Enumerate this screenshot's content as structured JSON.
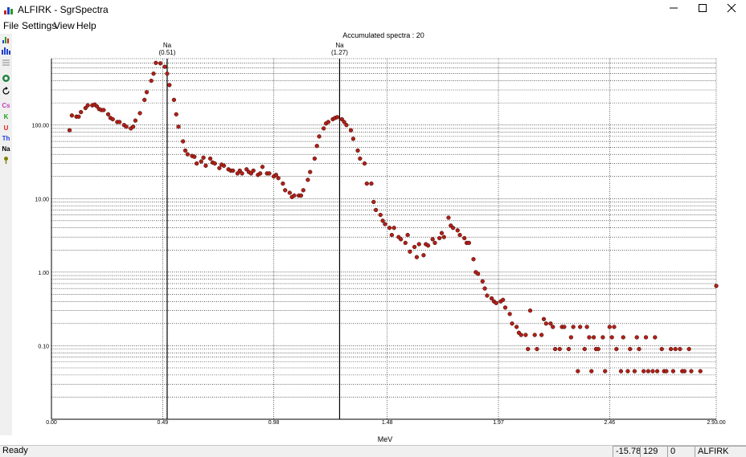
{
  "window": {
    "title": "ALFIRK - SgrSpectra"
  },
  "menu": [
    "File",
    "Settings",
    "View",
    "Help"
  ],
  "toolbar": {
    "buttons": [
      {
        "name": "bar-chart-icon",
        "label": ""
      },
      {
        "name": "multi-bar-chart-icon",
        "label": ""
      },
      {
        "name": "list-icon",
        "label": ""
      },
      {
        "name": "globe-icon",
        "label": ""
      },
      {
        "name": "refresh-icon",
        "label": ""
      },
      {
        "name": "cs-button",
        "label": "Cs",
        "color": "#c040c0"
      },
      {
        "name": "k-button",
        "label": "K",
        "color": "#20a020"
      },
      {
        "name": "u-button",
        "label": "U",
        "color": "#e02020"
      },
      {
        "name": "th-button",
        "label": "Th",
        "color": "#2040e0"
      },
      {
        "name": "na-button",
        "label": "Na",
        "color": "#000000"
      },
      {
        "name": "key-icon",
        "label": ""
      }
    ]
  },
  "chart_data": {
    "type": "scatter",
    "title": "Accumulated spectra : 20",
    "xlabel": "MeV",
    "ylabel": "",
    "y_scale": "log",
    "xlim": [
      0.0,
      2.93
    ],
    "ylim": [
      0.01,
      800
    ],
    "x_ticks": [
      "0.00",
      "0.49",
      "0.98",
      "1.48",
      "1.97",
      "2.46",
      "2.93.00"
    ],
    "y_ticks": [
      "100.00",
      "10.00",
      "1.00",
      "0.10"
    ],
    "marker_color": "#b02018",
    "grid": true,
    "markers": [
      {
        "name": "Na",
        "value": "(0.51)",
        "x": 0.51
      },
      {
        "name": "Na",
        "value": "(1.27)",
        "x": 1.27
      }
    ],
    "points": [
      [
        0.08,
        85
      ],
      [
        0.09,
        135
      ],
      [
        0.11,
        130
      ],
      [
        0.12,
        130
      ],
      [
        0.13,
        150
      ],
      [
        0.15,
        170
      ],
      [
        0.16,
        185
      ],
      [
        0.18,
        185
      ],
      [
        0.19,
        190
      ],
      [
        0.2,
        180
      ],
      [
        0.21,
        165
      ],
      [
        0.22,
        160
      ],
      [
        0.23,
        160
      ],
      [
        0.25,
        140
      ],
      [
        0.26,
        125
      ],
      [
        0.27,
        120
      ],
      [
        0.29,
        110
      ],
      [
        0.3,
        110
      ],
      [
        0.32,
        100
      ],
      [
        0.33,
        95
      ],
      [
        0.35,
        90
      ],
      [
        0.36,
        95
      ],
      [
        0.37,
        115
      ],
      [
        0.39,
        145
      ],
      [
        0.41,
        220
      ],
      [
        0.42,
        280
      ],
      [
        0.44,
        400
      ],
      [
        0.45,
        500
      ],
      [
        0.46,
        700
      ],
      [
        0.48,
        690
      ],
      [
        0.5,
        620
      ],
      [
        0.51,
        500
      ],
      [
        0.52,
        350
      ],
      [
        0.54,
        220
      ],
      [
        0.55,
        140
      ],
      [
        0.56,
        95
      ],
      [
        0.58,
        60
      ],
      [
        0.59,
        45
      ],
      [
        0.6,
        40
      ],
      [
        0.62,
        38
      ],
      [
        0.63,
        37
      ],
      [
        0.64,
        30
      ],
      [
        0.66,
        32
      ],
      [
        0.67,
        36
      ],
      [
        0.68,
        28
      ],
      [
        0.7,
        35
      ],
      [
        0.71,
        31
      ],
      [
        0.72,
        30
      ],
      [
        0.74,
        26
      ],
      [
        0.75,
        29
      ],
      [
        0.76,
        28
      ],
      [
        0.78,
        25
      ],
      [
        0.79,
        24
      ],
      [
        0.8,
        24
      ],
      [
        0.82,
        22
      ],
      [
        0.83,
        24
      ],
      [
        0.84,
        22
      ],
      [
        0.86,
        25
      ],
      [
        0.87,
        23
      ],
      [
        0.88,
        22
      ],
      [
        0.89,
        24
      ],
      [
        0.91,
        21
      ],
      [
        0.92,
        22
      ],
      [
        0.93,
        27
      ],
      [
        0.95,
        22
      ],
      [
        0.96,
        22
      ],
      [
        0.98,
        20
      ],
      [
        0.99,
        21
      ],
      [
        1.0,
        19
      ],
      [
        1.02,
        16
      ],
      [
        1.03,
        13
      ],
      [
        1.05,
        12
      ],
      [
        1.06,
        10.5
      ],
      [
        1.07,
        11
      ],
      [
        1.09,
        11
      ],
      [
        1.1,
        11
      ],
      [
        1.11,
        13
      ],
      [
        1.13,
        18
      ],
      [
        1.14,
        23
      ],
      [
        1.16,
        35
      ],
      [
        1.17,
        52
      ],
      [
        1.18,
        70
      ],
      [
        1.2,
        90
      ],
      [
        1.21,
        105
      ],
      [
        1.22,
        110
      ],
      [
        1.24,
        120
      ],
      [
        1.25,
        125
      ],
      [
        1.26,
        128
      ],
      [
        1.28,
        120
      ],
      [
        1.29,
        110
      ],
      [
        1.3,
        100
      ],
      [
        1.32,
        85
      ],
      [
        1.33,
        65
      ],
      [
        1.35,
        45
      ],
      [
        1.36,
        35
      ],
      [
        1.38,
        30
      ],
      [
        1.39,
        16
      ],
      [
        1.41,
        16
      ],
      [
        1.42,
        9
      ],
      [
        1.43,
        7
      ],
      [
        1.45,
        6
      ],
      [
        1.46,
        5
      ],
      [
        1.47,
        4.5
      ],
      [
        1.49,
        4
      ],
      [
        1.5,
        3.2
      ],
      [
        1.51,
        4
      ],
      [
        1.53,
        3
      ],
      [
        1.54,
        2.8
      ],
      [
        1.56,
        2.5
      ],
      [
        1.57,
        3.2
      ],
      [
        1.58,
        1.9
      ],
      [
        1.6,
        2.2
      ],
      [
        1.61,
        1.6
      ],
      [
        1.62,
        2.4
      ],
      [
        1.64,
        1.7
      ],
      [
        1.65,
        2.4
      ],
      [
        1.66,
        2.3
      ],
      [
        1.68,
        2.8
      ],
      [
        1.69,
        2.5
      ],
      [
        1.71,
        2.9
      ],
      [
        1.72,
        3.4
      ],
      [
        1.73,
        3
      ],
      [
        1.75,
        5.5
      ],
      [
        1.76,
        4.3
      ],
      [
        1.77,
        4
      ],
      [
        1.79,
        3.7
      ],
      [
        1.8,
        3.2
      ],
      [
        1.82,
        2.9
      ],
      [
        1.83,
        2.5
      ],
      [
        1.84,
        2.5
      ],
      [
        1.86,
        1.5
      ],
      [
        1.87,
        1
      ],
      [
        1.88,
        0.95
      ],
      [
        1.9,
        0.75
      ],
      [
        1.91,
        0.6
      ],
      [
        1.92,
        0.48
      ],
      [
        1.94,
        0.44
      ],
      [
        1.95,
        0.4
      ],
      [
        1.96,
        0.38
      ],
      [
        1.98,
        0.4
      ],
      [
        1.99,
        0.42
      ],
      [
        2.0,
        0.33
      ],
      [
        2.02,
        0.27
      ],
      [
        2.03,
        0.2
      ],
      [
        2.05,
        0.18
      ],
      [
        2.06,
        0.15
      ],
      [
        2.07,
        0.14
      ],
      [
        2.09,
        0.14
      ],
      [
        2.1,
        0.09
      ],
      [
        2.11,
        0.3
      ],
      [
        2.13,
        0.14
      ],
      [
        2.14,
        0.09
      ],
      [
        2.16,
        0.14
      ],
      [
        2.17,
        0.23
      ],
      [
        2.18,
        0.2
      ],
      [
        2.2,
        0.2
      ],
      [
        2.21,
        0.18
      ],
      [
        2.22,
        0.09
      ],
      [
        2.24,
        0.09
      ],
      [
        2.25,
        0.18
      ],
      [
        2.26,
        0.18
      ],
      [
        2.28,
        0.09
      ],
      [
        2.29,
        0.13
      ],
      [
        2.3,
        0.18
      ],
      [
        2.32,
        0.045
      ],
      [
        2.33,
        0.18
      ],
      [
        2.35,
        0.09
      ],
      [
        2.36,
        0.18
      ],
      [
        2.37,
        0.13
      ],
      [
        2.38,
        0.045
      ],
      [
        2.39,
        0.13
      ],
      [
        2.4,
        0.09
      ],
      [
        2.41,
        0.09
      ],
      [
        2.43,
        0.13
      ],
      [
        2.44,
        0.045
      ],
      [
        2.46,
        0.18
      ],
      [
        2.47,
        0.13
      ],
      [
        2.48,
        0.18
      ],
      [
        2.49,
        0.09
      ],
      [
        2.51,
        0.045
      ],
      [
        2.52,
        0.13
      ],
      [
        2.54,
        0.045
      ],
      [
        2.55,
        0.09
      ],
      [
        2.57,
        0.045
      ],
      [
        2.58,
        0.13
      ],
      [
        2.59,
        0.09
      ],
      [
        2.61,
        0.045
      ],
      [
        2.62,
        0.13
      ],
      [
        2.63,
        0.045
      ],
      [
        2.65,
        0.045
      ],
      [
        2.66,
        0.13
      ],
      [
        2.67,
        0.045
      ],
      [
        2.69,
        0.09
      ],
      [
        2.7,
        0.045
      ],
      [
        2.71,
        0.045
      ],
      [
        2.73,
        0.09
      ],
      [
        2.74,
        0.045
      ],
      [
        2.75,
        0.09
      ],
      [
        2.77,
        0.09
      ],
      [
        2.78,
        0.045
      ],
      [
        2.79,
        0.045
      ],
      [
        2.81,
        0.09
      ],
      [
        2.82,
        0.045
      ],
      [
        2.86,
        0.045
      ],
      [
        2.93,
        0.65
      ]
    ]
  },
  "statusbar": {
    "status": "Ready",
    "fields": [
      "-15.78",
      "129",
      "0",
      "ALFIRK"
    ]
  }
}
